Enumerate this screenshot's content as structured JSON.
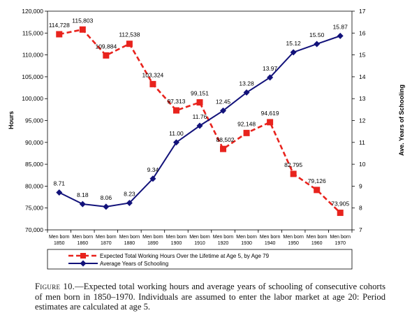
{
  "chart_data": {
    "type": "line",
    "categories": [
      [
        "Men born",
        "1850"
      ],
      [
        "Men born",
        "1860"
      ],
      [
        "Men born",
        "1870"
      ],
      [
        "Men born",
        "1880"
      ],
      [
        "Men born",
        "1890"
      ],
      [
        "Men born",
        "1900"
      ],
      [
        "Men born",
        "1910"
      ],
      [
        "Men born",
        "1920"
      ],
      [
        "Men born",
        "1930"
      ],
      [
        "Men born",
        "1940"
      ],
      [
        "Men born",
        "1950"
      ],
      [
        "Men born",
        "1960"
      ],
      [
        "Men born",
        "1970"
      ]
    ],
    "ylabel_left": "Hours",
    "ylabel_right": "Ave. Years of Schooling",
    "ylim_left": [
      70000,
      120000
    ],
    "ylim_right": [
      7,
      17
    ],
    "yticks_left": [
      "70,000",
      "75,000",
      "80,000",
      "85,000",
      "90,000",
      "95,000",
      "100,000",
      "105,000",
      "110,000",
      "115,000",
      "120,000"
    ],
    "yticks_right": [
      "7",
      "8",
      "9",
      "10",
      "11",
      "12",
      "13",
      "14",
      "15",
      "16",
      "17"
    ],
    "series": [
      {
        "name": "Expected Total Working Hours Over the Lifetime at Age 5, by Age 79",
        "axis": "left",
        "color": "#e8231d",
        "style": "dashed",
        "marker": "square",
        "values": [
          114728,
          115803,
          109884,
          112538,
          103324,
          97313,
          99151,
          88502,
          92148,
          94619,
          82795,
          79126,
          73905
        ],
        "labels": [
          "114,728",
          "115,803",
          "109,884",
          "112,538",
          "103,324",
          "97,313",
          "99,151",
          "88,502",
          "92,148",
          "94,619",
          "82,795",
          "79,126",
          "73,905"
        ]
      },
      {
        "name": "Average Years of Schooling",
        "axis": "right",
        "color": "#12127a",
        "style": "solid",
        "marker": "diamond",
        "values": [
          8.71,
          8.18,
          8.06,
          8.23,
          9.34,
          11.0,
          11.76,
          12.45,
          13.28,
          13.97,
          15.12,
          15.5,
          15.87
        ],
        "labels": [
          "8.71",
          "8.18",
          "8.06",
          "8.23",
          "9.34",
          "11.00",
          "11.76",
          "12.45",
          "13.28",
          "13.97",
          "15.12",
          "15.50",
          "15.87"
        ]
      }
    ]
  },
  "caption": {
    "figure_label": "Figure 10.",
    "text": "—Expected total working hours and average years of schooling of consecutive cohorts of men born in 1850–1970. Individuals are assumed to enter the labor market at age 20: Period estimates are calculated at age 5."
  }
}
